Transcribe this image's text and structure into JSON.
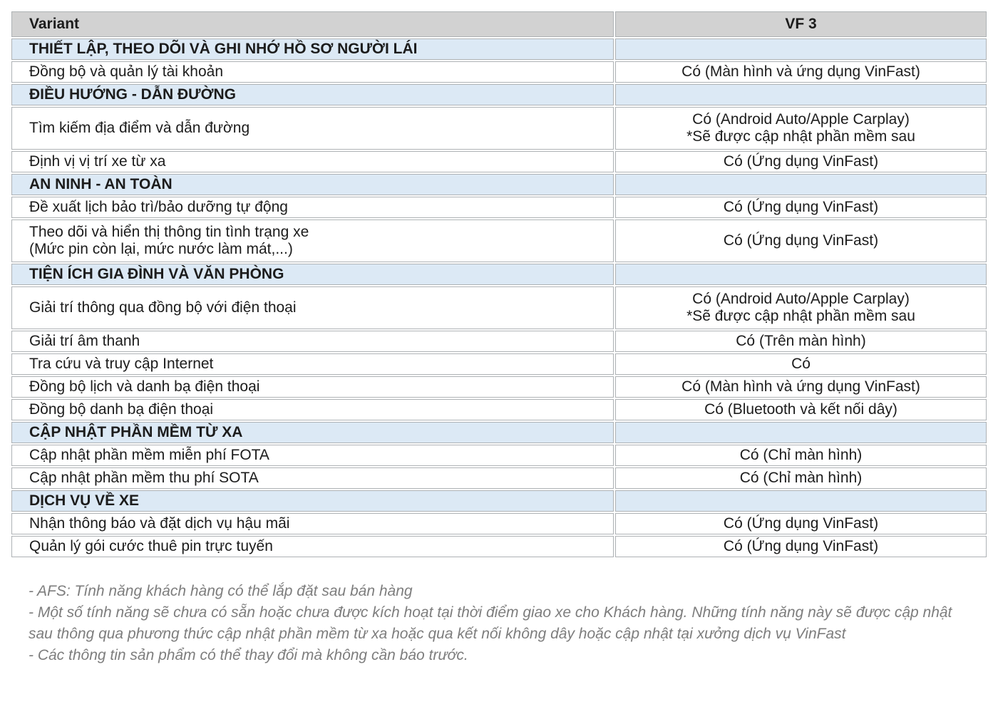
{
  "colors": {
    "header_bg": "#d2d2d2",
    "section_bg": "#dce9f5",
    "border": "#aeb2b5",
    "text": "#1c1c1c",
    "footnote_text": "#7d7d7d"
  },
  "table": {
    "columns": [
      "Variant",
      "VF 3"
    ],
    "rows": [
      {
        "type": "section",
        "label": "THIẾT LẬP, THEO DÕI VÀ GHI NHỚ HỒ SƠ NGƯỜI LÁI"
      },
      {
        "type": "feature",
        "label": "Đồng bộ và quản lý tài khoản",
        "value": "Có (Màn hình và ứng dụng VinFast)"
      },
      {
        "type": "section",
        "label": "ĐIỀU HƯỚNG - DẪN ĐƯỜNG"
      },
      {
        "type": "feature",
        "label": "Tìm kiếm địa điểm và dẫn đường",
        "value": "Có (Android Auto/Apple Carplay)\n*Sẽ được cập nhật phần mềm sau"
      },
      {
        "type": "feature",
        "label": "Định vị vị trí xe từ xa",
        "value": "Có (Ứng dụng VinFast)"
      },
      {
        "type": "section",
        "label": "AN NINH - AN TOÀN"
      },
      {
        "type": "feature",
        "label": "Đề xuất lịch bảo trì/bảo dưỡng tự động",
        "value": "Có (Ứng dụng VinFast)"
      },
      {
        "type": "feature",
        "label": "Theo dõi và hiển thị thông tin tình trạng xe\n(Mức pin còn lại, mức nước làm mát,...)",
        "value": "Có (Ứng dụng VinFast)"
      },
      {
        "type": "section",
        "label": "TIỆN ÍCH GIA ĐÌNH VÀ VĂN PHÒNG"
      },
      {
        "type": "feature",
        "label": "Giải trí thông qua đồng bộ với điện thoại",
        "value": "Có (Android Auto/Apple Carplay)\n*Sẽ được cập nhật phần mềm sau"
      },
      {
        "type": "feature",
        "label": "Giải trí âm thanh",
        "value": "Có (Trên màn hình)"
      },
      {
        "type": "feature",
        "label": "Tra cứu và truy cập Internet",
        "value": "Có"
      },
      {
        "type": "feature",
        "label": "Đồng bộ lịch  và danh bạ điện thoại",
        "value": "Có (Màn hình và ứng dụng VinFast)"
      },
      {
        "type": "feature",
        "label": "Đồng bộ danh bạ điện thoại",
        "value": "Có (Bluetooth và kết nối dây)"
      },
      {
        "type": "section",
        "label": "CẬP NHẬT PHẦN MỀM TỪ XA"
      },
      {
        "type": "feature",
        "label": "Cập nhật phần mềm miễn phí FOTA",
        "value": "Có (Chỉ màn hình)"
      },
      {
        "type": "feature",
        "label": "Cập nhật phần mềm thu phí SOTA",
        "value": "Có (Chỉ màn hình)"
      },
      {
        "type": "section",
        "label": "DỊCH VỤ VỀ XE"
      },
      {
        "type": "feature",
        "label": "Nhận thông báo và đặt dịch vụ hậu mãi",
        "value": "Có (Ứng dụng VinFast)"
      },
      {
        "type": "feature",
        "label": "Quản lý gói cước thuê pin trực tuyến",
        "value": "Có (Ứng dụng VinFast)"
      }
    ]
  },
  "footnotes": [
    "- AFS: Tính năng khách hàng có thể lắp đặt sau bán hàng",
    "- Một số tính năng sẽ chưa có sẵn hoặc chưa được kích hoạt tại thời điểm giao xe cho Khách hàng. Những tính năng này sẽ được cập nhật sau thông qua phương thức cập nhật phần mềm từ xa hoặc qua kết nối không dây hoặc cập nhật tại xưởng dịch vụ VinFast",
    "- Các thông tin sản phẩm có thể thay đổi mà không cần báo trước."
  ]
}
